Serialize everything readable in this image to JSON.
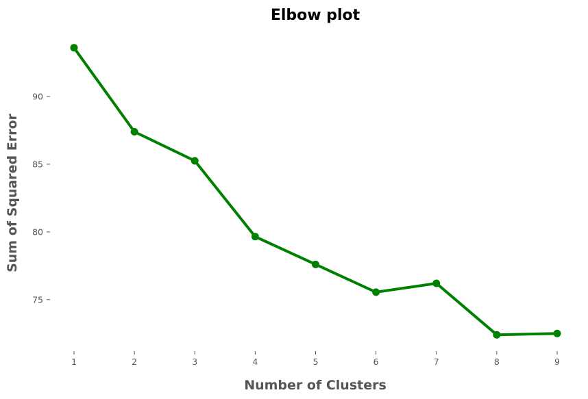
{
  "chart_data": {
    "type": "line",
    "title": "Elbow plot",
    "xlabel": "Number of Clusters",
    "ylabel": "Sum of Squared Error",
    "x": [
      1,
      2,
      3,
      4,
      5,
      6,
      7,
      8,
      9
    ],
    "xticks": [
      "1",
      "2",
      "3",
      "4",
      "5",
      "6",
      "7",
      "8",
      "9"
    ],
    "yticks": [
      "75",
      "80",
      "85",
      "90"
    ],
    "xlim": [
      1,
      9
    ],
    "ylim": [
      71.35,
      94.6
    ],
    "grid": false,
    "series": [
      {
        "values": [
          93.6,
          87.4,
          85.25,
          79.65,
          77.6,
          75.55,
          76.2,
          72.4,
          72.5
        ],
        "color": "#008000",
        "marker": "circle"
      }
    ]
  }
}
